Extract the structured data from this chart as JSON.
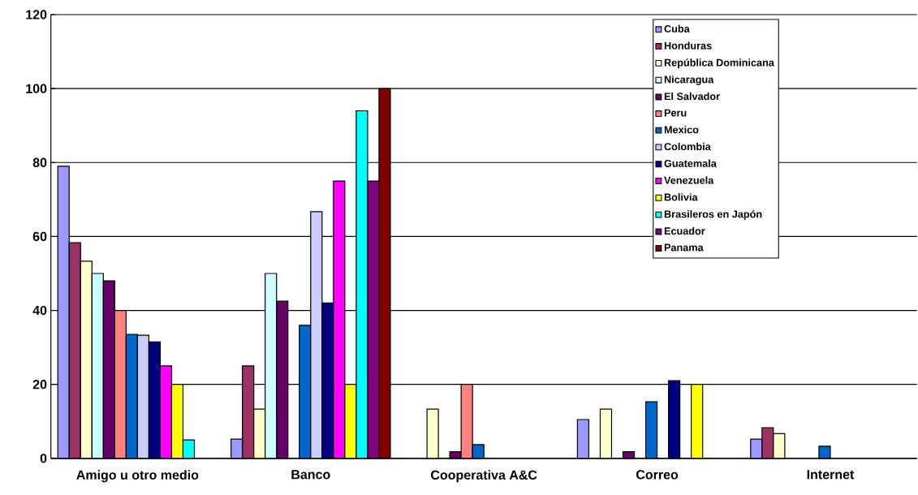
{
  "chart_data": {
    "type": "bar",
    "categories": [
      "Amigo u otro medio",
      "Banco",
      "Cooperativa A&C",
      "Correo",
      "Internet"
    ],
    "series": [
      {
        "name": "Cuba",
        "color": "#9999ff",
        "values": [
          79,
          5.2,
          null,
          10.5,
          5.2
        ]
      },
      {
        "name": "Honduras",
        "color": "#993366",
        "values": [
          58.3,
          25,
          null,
          null,
          8.3
        ]
      },
      {
        "name": "República Dominicana",
        "color": "#ffffcc",
        "values": [
          53.3,
          13.3,
          13.3,
          13.3,
          6.7
        ]
      },
      {
        "name": "Nicaragua",
        "color": "#ccffff",
        "values": [
          50,
          50,
          null,
          null,
          null
        ]
      },
      {
        "name": "El Salvador",
        "color": "#660066",
        "values": [
          48,
          42.5,
          1.8,
          1.8,
          null
        ]
      },
      {
        "name": "Peru",
        "color": "#ff8080",
        "values": [
          40,
          null,
          20,
          null,
          null
        ]
      },
      {
        "name": "Mexico",
        "color": "#0066cc",
        "values": [
          33.5,
          36,
          3.7,
          15.3,
          3.3
        ]
      },
      {
        "name": "Colombia",
        "color": "#ccccff",
        "values": [
          33.3,
          66.7,
          null,
          null,
          null
        ]
      },
      {
        "name": "Guatemala",
        "color": "#000080",
        "values": [
          31.5,
          42,
          null,
          21,
          null
        ]
      },
      {
        "name": "Venezuela",
        "color": "#ff00ff",
        "values": [
          25,
          75,
          null,
          null,
          null
        ]
      },
      {
        "name": "Bolivia",
        "color": "#ffff00",
        "values": [
          20,
          20,
          null,
          20,
          null
        ]
      },
      {
        "name": "Brasileros en Japón",
        "color": "#00ffff",
        "values": [
          5,
          94,
          null,
          null,
          null
        ]
      },
      {
        "name": "Ecuador",
        "color": "#800080",
        "values": [
          null,
          75,
          null,
          null,
          null
        ]
      },
      {
        "name": "Panama",
        "color": "#800000",
        "values": [
          null,
          100,
          null,
          null,
          null
        ]
      }
    ],
    "ylim": [
      0,
      120
    ],
    "yticks": [
      0,
      20,
      40,
      60,
      80,
      100,
      120
    ],
    "grid": "y",
    "legend": "top right"
  }
}
